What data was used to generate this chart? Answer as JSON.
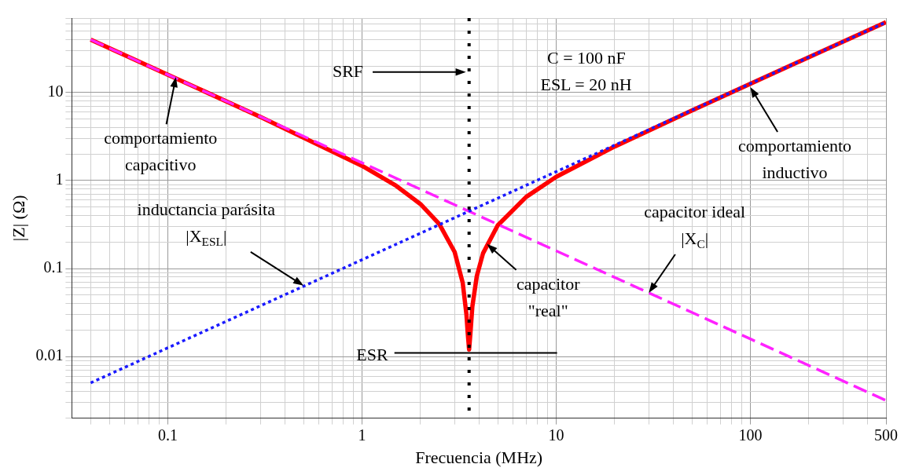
{
  "chart_data": {
    "type": "line",
    "xlabel": "Frecuencia (MHz)",
    "ylabel": "|Z| (Ω)",
    "log": "xy",
    "grid": true,
    "legend": false,
    "marker": "none",
    "xlim": [
      0.032,
      500
    ],
    "ylim": [
      0.002,
      70
    ],
    "xticks": [
      {
        "value": 0.04,
        "label": null
      },
      {
        "value": 0.05,
        "label": null
      },
      {
        "value": 0.06,
        "label": null
      },
      {
        "value": 0.07,
        "label": null
      },
      {
        "value": 0.08,
        "label": null
      },
      {
        "value": 0.09,
        "label": null
      },
      0.1,
      {
        "value": 0.2,
        "label": null
      },
      {
        "value": 0.3,
        "label": null
      },
      {
        "value": 0.4,
        "label": null
      },
      {
        "value": 0.5,
        "label": null
      },
      {
        "value": 0.6,
        "label": null
      },
      {
        "value": 0.7,
        "label": null
      },
      {
        "value": 0.8,
        "label": null
      },
      {
        "value": 0.9,
        "label": null
      },
      1,
      {
        "value": 2,
        "label": null
      },
      {
        "value": 3,
        "label": null
      },
      {
        "value": 4,
        "label": null
      },
      {
        "value": 5,
        "label": null
      },
      {
        "value": 6,
        "label": null
      },
      {
        "value": 7,
        "label": null
      },
      {
        "value": 8,
        "label": null
      },
      {
        "value": 9,
        "label": null
      },
      10,
      {
        "value": 20,
        "label": null
      },
      {
        "value": 30,
        "label": null
      },
      {
        "value": 40,
        "label": null
      },
      {
        "value": 50,
        "label": null
      },
      {
        "value": 60,
        "label": null
      },
      {
        "value": 70,
        "label": null
      },
      {
        "value": 80,
        "label": null
      },
      {
        "value": 90,
        "label": null
      },
      100,
      {
        "value": 200,
        "label": null
      },
      {
        "value": 300,
        "label": null
      },
      {
        "value": 400,
        "label": null
      },
      500
    ],
    "yticks": [
      {
        "value": 0.002,
        "label": null
      },
      {
        "value": 0.003,
        "label": null
      },
      {
        "value": 0.004,
        "label": null
      },
      {
        "value": 0.005,
        "label": null
      },
      {
        "value": 0.006,
        "label": null
      },
      {
        "value": 0.007,
        "label": null
      },
      {
        "value": 0.008,
        "label": null
      },
      {
        "value": 0.009,
        "label": null
      },
      0.01,
      {
        "value": 0.02,
        "label": null
      },
      {
        "value": 0.03,
        "label": null
      },
      {
        "value": 0.04,
        "label": null
      },
      {
        "value": 0.05,
        "label": null
      },
      {
        "value": 0.06,
        "label": null
      },
      {
        "value": 0.07,
        "label": null
      },
      {
        "value": 0.08,
        "label": null
      },
      {
        "value": 0.09,
        "label": null
      },
      0.1,
      {
        "value": 0.2,
        "label": null
      },
      {
        "value": 0.3,
        "label": null
      },
      {
        "value": 0.4,
        "label": null
      },
      {
        "value": 0.5,
        "label": null
      },
      {
        "value": 0.6,
        "label": null
      },
      {
        "value": 0.7,
        "label": null
      },
      {
        "value": 0.8,
        "label": null
      },
      {
        "value": 0.9,
        "label": null
      },
      1,
      {
        "value": 2,
        "label": null
      },
      {
        "value": 3,
        "label": null
      },
      {
        "value": 4,
        "label": null
      },
      {
        "value": 5,
        "label": null
      },
      {
        "value": 6,
        "label": null
      },
      {
        "value": 7,
        "label": null
      },
      {
        "value": 8,
        "label": null
      },
      {
        "value": 9,
        "label": null
      },
      10,
      {
        "value": 20,
        "label": null
      },
      {
        "value": 30,
        "label": null
      },
      {
        "value": 40,
        "label": null
      },
      {
        "value": 50,
        "label": null
      },
      {
        "value": 60,
        "label": null
      },
      {
        "value": 70,
        "label": null
      }
    ],
    "series": [
      {
        "type": "line",
        "color": "#ff0000",
        "line_style": "solid",
        "x": [
          0.04,
          0.1,
          0.3,
          1,
          1.5,
          2,
          2.5,
          3,
          3.3,
          3.45,
          3.5,
          3.56,
          3.62,
          3.7,
          3.9,
          4.2,
          5,
          7,
          10,
          20,
          50,
          100,
          500
        ],
        "values": [
          39.8,
          15.9,
          5.27,
          1.47,
          0.87,
          0.54,
          0.32,
          0.154,
          0.069,
          0.03,
          0.019,
          0.012,
          0.019,
          0.037,
          0.082,
          0.149,
          0.31,
          0.65,
          1.1,
          2.43,
          6.25,
          12.55,
          62.8
        ]
      },
      {
        "type": "line",
        "color": "#ff22ff",
        "line_style": "dashed",
        "x": [
          0.04,
          0.1,
          1,
          10,
          100,
          500
        ],
        "values": [
          39.8,
          15.9,
          1.59,
          0.159,
          0.0159,
          0.00318
        ]
      },
      {
        "type": "line",
        "color": "#1a1aff",
        "line_style": "dotted",
        "x": [
          0.04,
          0.1,
          1,
          10,
          100,
          500
        ],
        "values": [
          0.00503,
          0.0126,
          0.126,
          1.26,
          12.6,
          62.8
        ]
      }
    ],
    "ref_lines": [
      {
        "axis": "x",
        "value": 3.56,
        "label": "SRF",
        "color": "#000000",
        "line_style": "dotted"
      }
    ],
    "annotations": [
      "C = 100 nF\nESL = 20 nH",
      {
        "text": "comportamiento\ncapacitivo",
        "x": 0.11,
        "y": 15
      },
      {
        "text": "comportamiento\ninductivo",
        "x": 100,
        "y": 11.5
      },
      {
        "text": "inductancia parásita\n|X$_{ESL}$|",
        "x": 0.5,
        "y": 0.064
      },
      {
        "text": "capacitor ideal\n|X$_{C}$|",
        "x": 30,
        "y": 0.053
      },
      {
        "text": "capacitor\n\"real\"",
        "x": 4.4,
        "y": 0.19
      },
      "ESR"
    ]
  }
}
